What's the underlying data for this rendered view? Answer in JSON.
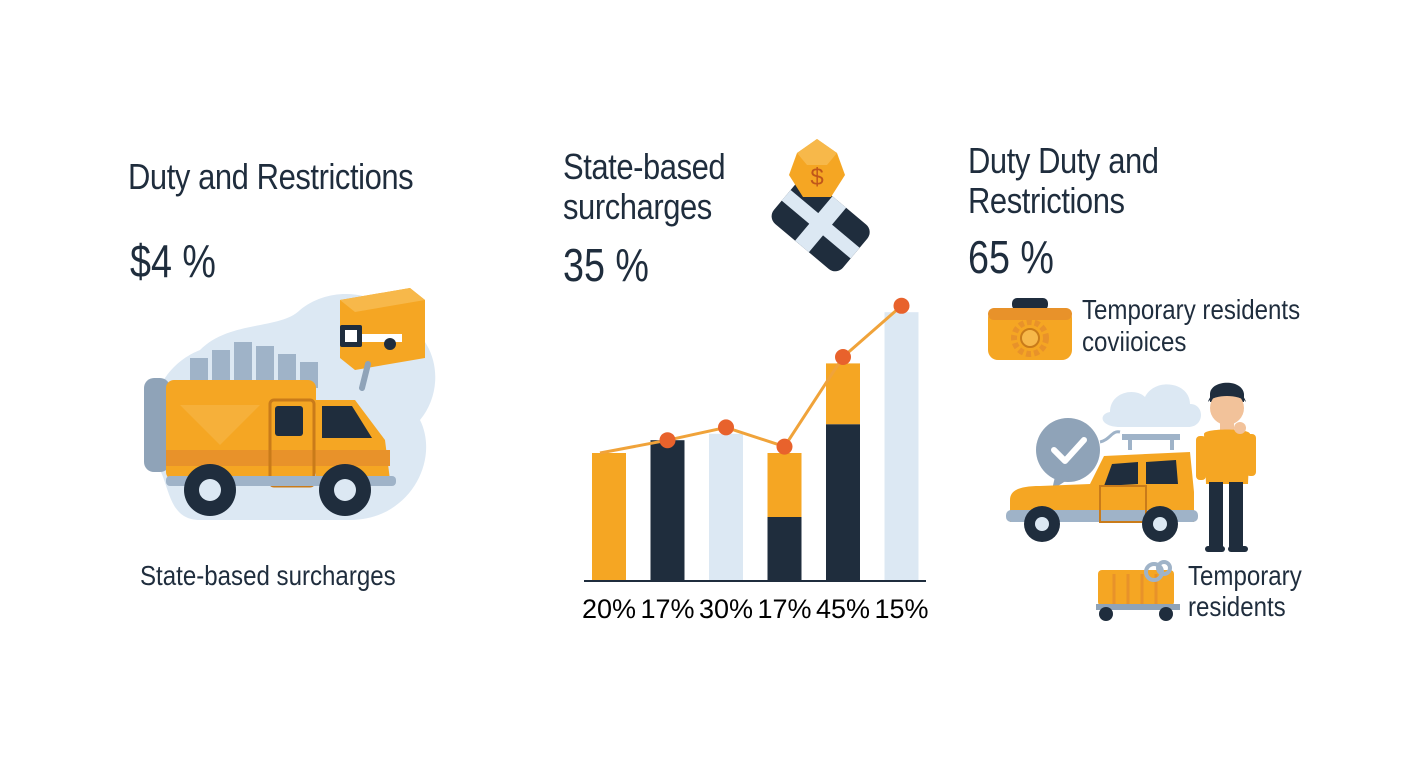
{
  "colors": {
    "navy": "#1f2d3d",
    "orange": "#f5a623",
    "orange_dark": "#e8922a",
    "light_blue": "#dce8f3",
    "dot": "#e8622c",
    "line": "#f0a33a"
  },
  "left": {
    "title": "Duty and Restrictions",
    "value": "$4 %",
    "caption": "State-based surcharges",
    "illustration_icon": "delivery-van-icon"
  },
  "middle": {
    "title_lines": [
      "State-based",
      "surcharges"
    ],
    "value": "35 %",
    "illustration_icon": "money-tag-icon"
  },
  "right": {
    "title_lines": [
      "Duty Duty and",
      "Restrictions"
    ],
    "value": "65 %",
    "item1_lines": [
      "Temporary residents",
      "coviioices"
    ],
    "item1_icon": "toolbox-gear-icon",
    "item2_lines": [
      "Temporary",
      "residents"
    ],
    "item2_icon": "cart-icon",
    "illustration_icon": "person-with-car-icon"
  },
  "chart_data": {
    "type": "bar",
    "categories": [
      "20%",
      "17%",
      "30%",
      "17%",
      "45%",
      "15%"
    ],
    "series": [
      {
        "values": [
          20,
          17,
          30,
          17,
          45,
          15
        ]
      }
    ],
    "line_values": [
      20,
      22,
      24,
      21,
      35,
      43
    ],
    "bar_heights": [
      20,
      22,
      23,
      20,
      34,
      42
    ],
    "bar_style": [
      "orange",
      "navy",
      "light",
      "split",
      "split",
      "light"
    ],
    "split_fraction_navy": [
      0,
      0,
      0,
      0.5,
      0.72,
      0
    ],
    "title": "",
    "xlabel": "",
    "ylabel": "",
    "grid": false,
    "legend": "none"
  }
}
